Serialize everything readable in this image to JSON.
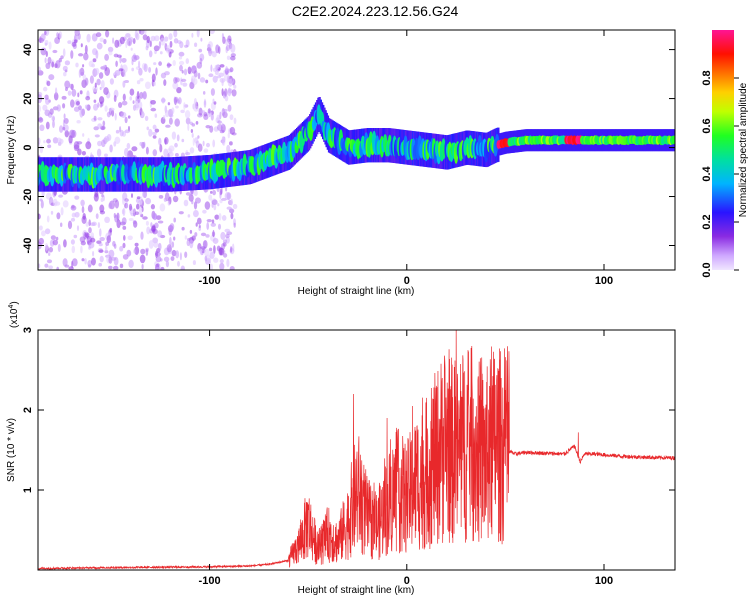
{
  "title": "C2E2.2024.223.12.56.G24",
  "chart_data": [
    {
      "type": "heatmap",
      "name": "spectrogram",
      "xlabel": "Height of straight line (km)",
      "ylabel": "Frequency (Hz)",
      "xlim": [
        -187,
        136
      ],
      "ylim": [
        -50,
        48
      ],
      "x_ticks": [
        -100,
        0,
        100
      ],
      "y_ticks": [
        -40,
        -20,
        0,
        20,
        40
      ],
      "colorbar": {
        "label": "Normalized spectral amplitude",
        "range": [
          0,
          1
        ],
        "ticks": [
          "0.0",
          "0.2",
          "0.4",
          "0.6",
          "0.8"
        ],
        "colormap": [
          "#e6d2ff",
          "#8a2be2",
          "#3a10ff",
          "#00c8ff",
          "#00ff50",
          "#ffff00",
          "#ff8000",
          "#ff0000",
          "#ff1493"
        ]
      },
      "ridge": {
        "x": [
          -187,
          -150,
          -120,
          -100,
          -80,
          -60,
          -50,
          -45,
          -40,
          -30,
          -20,
          -10,
          0,
          10,
          20,
          30,
          40,
          45,
          50,
          60,
          80,
          100,
          136
        ],
        "frequency": [
          -11,
          -11,
          -11,
          -10,
          -8,
          -2,
          6,
          14,
          5,
          0,
          1,
          1,
          0,
          -1,
          -2,
          0,
          -1,
          1,
          2,
          3,
          3,
          3,
          3
        ]
      },
      "notes": "Noisy scattered low-amplitude energy for x < -90 km across all frequencies; strong narrow tone (amplitude ~0.9-1.0) near +2 to +3 Hz for x > 45 km."
    },
    {
      "type": "line",
      "name": "snr",
      "xlabel": "Height of straight line (km)",
      "ylabel": "SNR (10 * v/v)",
      "scale_label": "(x10",
      "scale_exp": "4",
      "scale_close": ")",
      "xlim": [
        -187,
        136
      ],
      "ylim": [
        0,
        3
      ],
      "x_ticks": [
        -100,
        0,
        100
      ],
      "y_ticks": [
        1,
        2,
        3
      ],
      "color": "#e8282b",
      "x": [
        -187,
        -150,
        -100,
        -80,
        -70,
        -60,
        -55,
        -50,
        -45,
        -40,
        -35,
        -30,
        -25,
        -20,
        -15,
        -10,
        -5,
        0,
        5,
        10,
        15,
        20,
        25,
        30,
        35,
        40,
        45,
        50,
        55,
        60,
        70,
        80,
        85,
        88,
        90,
        95,
        100,
        110,
        120,
        136
      ],
      "y": [
        0.02,
        0.03,
        0.04,
        0.05,
        0.07,
        0.12,
        0.3,
        0.6,
        0.25,
        0.45,
        0.35,
        0.6,
        1.0,
        0.65,
        0.55,
        0.8,
        1.0,
        0.9,
        1.1,
        1.2,
        1.4,
        1.6,
        1.4,
        1.6,
        1.5,
        1.4,
        1.6,
        1.5,
        1.45,
        1.47,
        1.46,
        1.45,
        1.55,
        1.35,
        1.45,
        1.45,
        1.44,
        1.42,
        1.41,
        1.4
      ],
      "peaks": [
        {
          "x": -50,
          "y": 0.82
        },
        {
          "x": -27,
          "y": 2.2
        },
        {
          "x": -10,
          "y": 1.9
        },
        {
          "x": 3,
          "y": 2.05
        },
        {
          "x": 18,
          "y": 2.4
        },
        {
          "x": 25,
          "y": 3.0
        },
        {
          "x": 33,
          "y": 2.8
        },
        {
          "x": 42,
          "y": 2.3
        },
        {
          "x": 87,
          "y": 1.72
        }
      ]
    }
  ]
}
